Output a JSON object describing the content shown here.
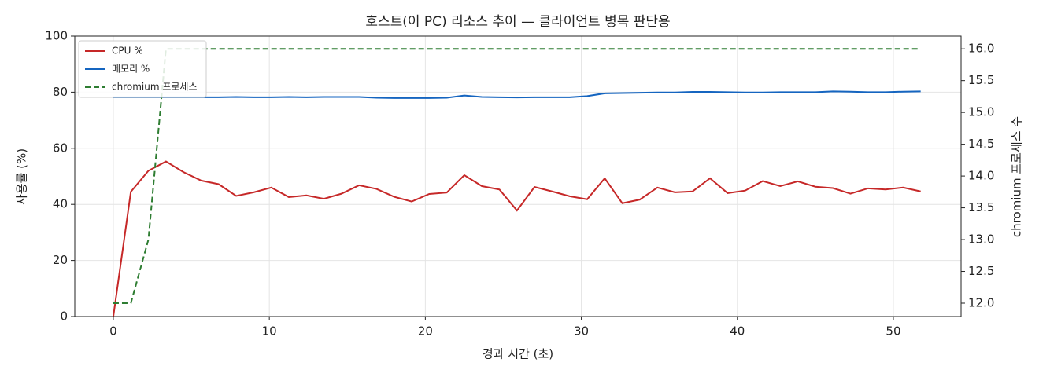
{
  "chart_data": {
    "type": "line",
    "title": "호스트(이 PC) 리소스 추이 — 클라이언트 병목 판단용",
    "x_label": "경과 시간 (초)",
    "y_label": "사용률 (%)",
    "y2_label": "chromium 프로세스 수",
    "x": [
      0,
      1.125,
      2.25,
      3.375,
      4.5,
      5.625,
      6.75,
      7.875,
      9,
      10.125,
      11.25,
      12.375,
      13.5,
      14.625,
      15.75,
      16.875,
      18,
      19.125,
      20.25,
      21.375,
      22.5,
      23.625,
      24.75,
      25.875,
      27,
      28.125,
      29.25,
      30.375,
      31.5,
      32.625,
      33.75,
      34.875,
      36,
      37.125,
      38.25,
      39.375,
      40.5,
      41.625,
      42.75,
      43.875,
      45,
      46.125,
      47.25,
      48.375,
      49.5,
      50.625,
      51.75
    ],
    "series": [
      {
        "name": "CPU %",
        "color": "#c62828",
        "values": [
          0,
          44.5,
          52,
          55.3,
          51.5,
          48.5,
          47.2,
          43,
          44.3,
          46,
          42.6,
          43.2,
          42,
          43.8,
          46.8,
          45.5,
          42.7,
          41,
          43.7,
          44.2,
          50.4,
          46.5,
          45.3,
          37.8,
          46.2,
          44.6,
          42.9,
          41.8,
          49.3,
          40.4,
          41.7,
          46,
          44.3,
          44.6,
          49.3,
          44,
          44.9,
          48.3,
          46.5,
          48.2,
          46.3,
          45.8,
          43.8,
          45.7,
          45.3,
          46,
          44.6
        ]
      },
      {
        "name": "메모리 %",
        "color": "#1565c0",
        "values": [
          78.2,
          78.2,
          78.2,
          78.2,
          78.2,
          78.2,
          78.2,
          78.3,
          78.2,
          78.2,
          78.3,
          78.2,
          78.3,
          78.3,
          78.3,
          78.0,
          77.9,
          77.9,
          77.9,
          78.0,
          78.8,
          78.3,
          78.2,
          78.1,
          78.2,
          78.2,
          78.2,
          78.6,
          79.6,
          79.7,
          79.8,
          79.9,
          79.9,
          80.1,
          80.1,
          80.0,
          79.9,
          79.9,
          80.0,
          80.0,
          80.0,
          80.3,
          80.2,
          80.0,
          80.0,
          80.2,
          80.3
        ]
      },
      {
        "name": "chromium 프로세스",
        "color": "#2e7d32",
        "dashed": true,
        "axis": "y2",
        "values": [
          12,
          12,
          13,
          16,
          16,
          16,
          16,
          16,
          16,
          16,
          16,
          16,
          16,
          16,
          16,
          16,
          16,
          16,
          16,
          16,
          16,
          16,
          16,
          16,
          16,
          16,
          16,
          16,
          16,
          16,
          16,
          16,
          16,
          16,
          16,
          16,
          16,
          16,
          16,
          16,
          16,
          16,
          16,
          16,
          16,
          16,
          16
        ]
      }
    ],
    "xlim": [
      -2.47,
      54.34
    ],
    "xticks": [
      0,
      10,
      20,
      30,
      40,
      50
    ],
    "ylim": [
      0,
      100
    ],
    "yticks": [
      0,
      20,
      40,
      60,
      80,
      100
    ],
    "y2lim": [
      11.79,
      16.2
    ],
    "y2ticks": [
      {
        "value": 12,
        "label": "12.0"
      },
      12.5,
      {
        "value": 13,
        "label": "13.0"
      },
      13.5,
      {
        "value": 14,
        "label": "14.0"
      },
      14.5,
      {
        "value": 15,
        "label": "15.0"
      },
      15.5,
      {
        "value": 16,
        "label": "16.0"
      }
    ],
    "grid": true,
    "legend": "upper-left"
  }
}
